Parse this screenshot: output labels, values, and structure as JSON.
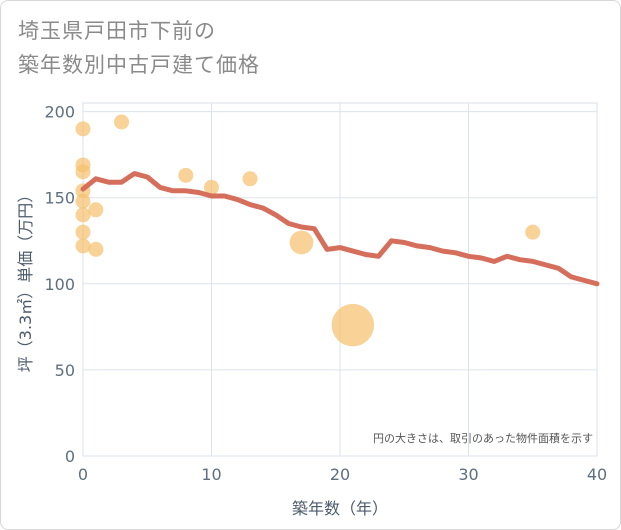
{
  "title": {
    "line1": "埼玉県戸田市下前の",
    "line2": "築年数別中古戸建て価格"
  },
  "chart_data": {
    "type": "scatter",
    "xlabel": "築年数（年）",
    "ylabel": "坪（3.3㎡）単価（万円）",
    "xlim": [
      0,
      40
    ],
    "ylim": [
      0,
      205
    ],
    "xticks": [
      "0",
      "10",
      "20",
      "30",
      "40"
    ],
    "yticks": [
      "0",
      "50",
      "100",
      "150",
      "200"
    ],
    "grid": true,
    "note": "円の大きさは、取引のあった物件面積を示す",
    "colors": {
      "bubble": "#f5c16e",
      "line": "#d56e5a",
      "grid": "#dbe3ec"
    },
    "scatter_series": [
      {
        "x": 0,
        "y": 190,
        "size": 1
      },
      {
        "x": 0,
        "y": 169,
        "size": 1
      },
      {
        "x": 0,
        "y": 165,
        "size": 1
      },
      {
        "x": 0,
        "y": 154,
        "size": 1
      },
      {
        "x": 0,
        "y": 148,
        "size": 1
      },
      {
        "x": 0,
        "y": 140,
        "size": 1
      },
      {
        "x": 0,
        "y": 130,
        "size": 1
      },
      {
        "x": 0,
        "y": 122,
        "size": 1
      },
      {
        "x": 1,
        "y": 143,
        "size": 1
      },
      {
        "x": 1,
        "y": 120,
        "size": 1
      },
      {
        "x": 3,
        "y": 194,
        "size": 1
      },
      {
        "x": 8,
        "y": 163,
        "size": 1
      },
      {
        "x": 10,
        "y": 156,
        "size": 1
      },
      {
        "x": 13,
        "y": 161,
        "size": 1
      },
      {
        "x": 17,
        "y": 124,
        "size": 2.5
      },
      {
        "x": 21,
        "y": 76,
        "size": 8
      },
      {
        "x": 35,
        "y": 130,
        "size": 1
      }
    ],
    "line_series": {
      "x": [
        0,
        1,
        2,
        3,
        4,
        5,
        6,
        7,
        8,
        9,
        10,
        11,
        12,
        13,
        14,
        15,
        16,
        17,
        18,
        19,
        20,
        21,
        22,
        23,
        24,
        25,
        26,
        27,
        28,
        29,
        30,
        31,
        32,
        33,
        34,
        35,
        36,
        37,
        38,
        39,
        40
      ],
      "y": [
        155,
        161,
        159,
        159,
        164,
        162,
        156,
        154,
        154,
        153,
        151,
        151,
        149,
        146,
        144,
        140,
        135,
        133,
        132,
        120,
        121,
        119,
        117,
        116,
        125,
        124,
        122,
        121,
        119,
        118,
        116,
        115,
        113,
        116,
        114,
        113,
        111,
        109,
        104,
        102,
        100
      ]
    }
  }
}
